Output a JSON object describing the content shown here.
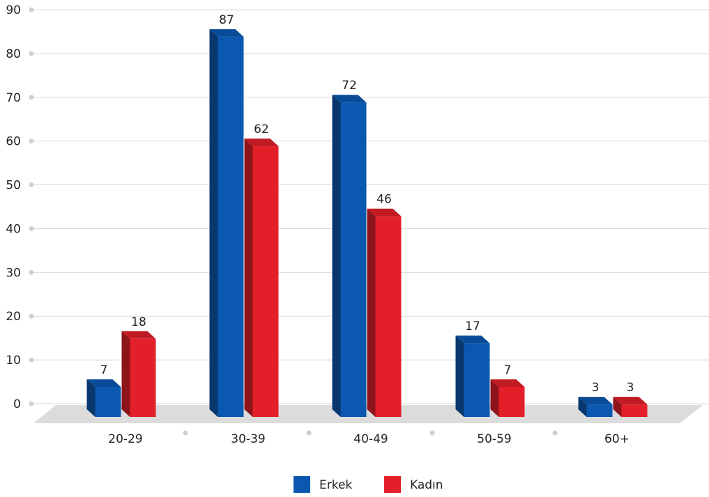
{
  "chart_data": {
    "type": "bar",
    "categories": [
      "20-29",
      "30-39",
      "40-49",
      "50-59",
      "60+"
    ],
    "series": [
      {
        "name": "Erkek",
        "values": [
          7,
          87,
          72,
          17,
          3
        ],
        "color": "#0b58b0"
      },
      {
        "name": "Kadın",
        "values": [
          18,
          62,
          46,
          7,
          3
        ],
        "color": "#e3202a"
      }
    ],
    "ylim": [
      0,
      90
    ],
    "yticks": [
      0,
      10,
      20,
      30,
      40,
      50,
      60,
      70,
      80,
      90
    ],
    "grid": true,
    "style": "3d",
    "legend_position": "bottom",
    "colors": {
      "floor": "#dcdcdc",
      "grid": "#d9d9d9",
      "dot": "#cfcfcf"
    }
  }
}
